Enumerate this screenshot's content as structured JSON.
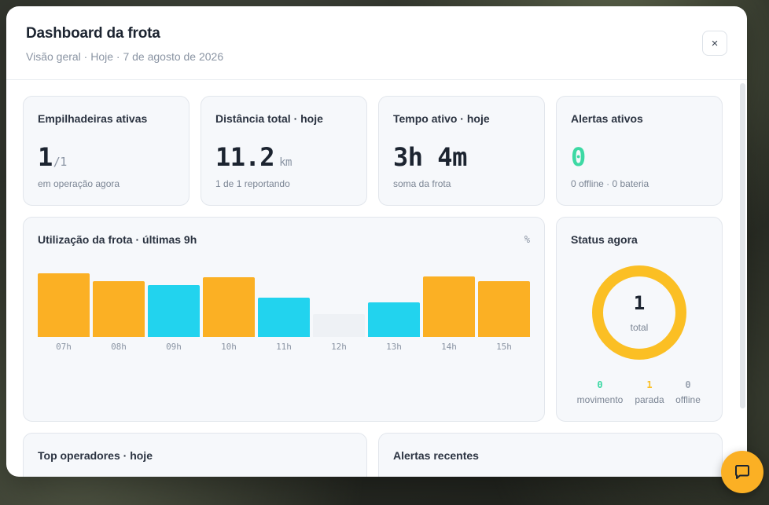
{
  "header": {
    "title": "Dashboard da frota",
    "subtitle": "Visão geral · Hoje · 7 de agosto de 2026",
    "close_label": "×"
  },
  "stats": [
    {
      "title": "Empilhadeiras ativas",
      "value": "1",
      "suffix": "/1",
      "unit": "",
      "sub": "em operação agora",
      "color": "#1c2430"
    },
    {
      "title": "Distância total · hoje",
      "value": "11.2",
      "suffix": "",
      "unit": "km",
      "sub": "1 de 1 reportando",
      "color": "#1c2430"
    },
    {
      "title": "Tempo ativo · hoje",
      "value": "3h 4m",
      "suffix": "",
      "unit": "",
      "sub": "soma da frota",
      "color": "#1c2430"
    },
    {
      "title": "Alertas ativos",
      "value": "0",
      "suffix": "",
      "unit": "",
      "sub": "0 offline · 0 bateria",
      "color": "#3dd9a4"
    }
  ],
  "utilization": {
    "title": "Utilização da frota · últimas 9h",
    "unit": "%"
  },
  "chart_data": {
    "type": "bar",
    "title": "Utilização da frota · últimas 9h",
    "ylabel": "%",
    "categories": [
      "07h",
      "08h",
      "09h",
      "10h",
      "11h",
      "12h",
      "13h",
      "14h",
      "15h"
    ],
    "values": [
      90,
      79,
      73,
      84,
      55,
      32,
      49,
      85,
      79
    ],
    "bar_colors": [
      "#fbb024",
      "#fbb024",
      "#22d3ee",
      "#fbb024",
      "#22d3ee",
      "#eef1f5",
      "#22d3ee",
      "#fbb024",
      "#fbb024"
    ],
    "ylim": [
      0,
      100
    ]
  },
  "status": {
    "title": "Status agora",
    "total_value": "1",
    "total_label": "total",
    "ring_color": "#fbbf24",
    "legend": [
      {
        "value": "0",
        "label": "movimento",
        "color": "#3dd9a4"
      },
      {
        "value": "1",
        "label": "parada",
        "color": "#fbbf24"
      },
      {
        "value": "0",
        "label": "offline",
        "color": "#9aa3b0"
      }
    ]
  },
  "bottom": {
    "operators_title": "Top operadores · hoje",
    "alerts_title": "Alertas recentes"
  },
  "fab": {
    "icon": "chat-bubble-icon"
  }
}
